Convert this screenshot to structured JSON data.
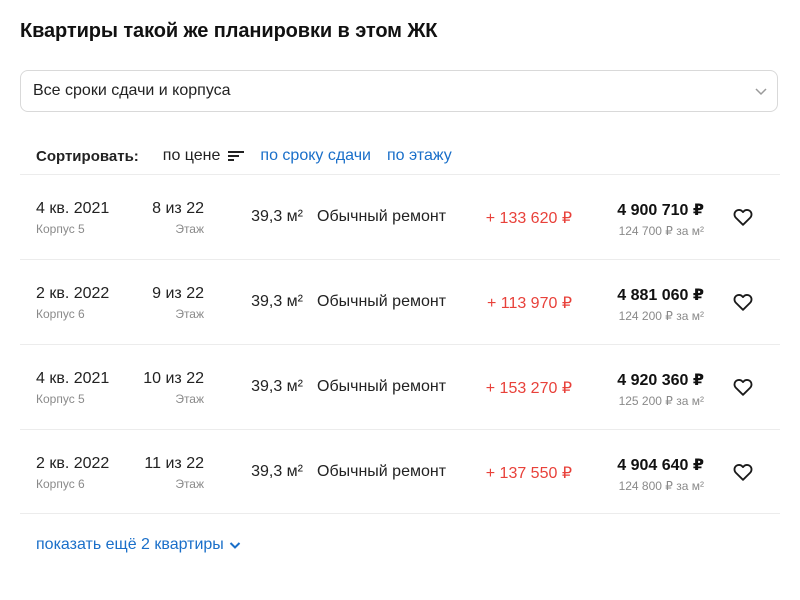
{
  "title": "Квартиры такой же планировки в этом ЖК",
  "filter": {
    "value": "Все сроки сдачи и корпуса"
  },
  "sort": {
    "label": "Сортировать:",
    "options": [
      {
        "label": "по цене",
        "active": true
      },
      {
        "label": "по сроку сдачи",
        "active": false
      },
      {
        "label": "по этажу",
        "active": false
      }
    ]
  },
  "rows": [
    {
      "date": "4 кв. 2021",
      "building": "Корпус 5",
      "floor": "8 из 22",
      "floor_label": "Этаж",
      "area": "39,3 м²",
      "repair": "Обычный ремонт",
      "diff": "+ 133 620 ₽",
      "price": "4 900 710 ₽",
      "price_per_m2": "124 700 ₽ за м²"
    },
    {
      "date": "2 кв. 2022",
      "building": "Корпус 6",
      "floor": "9 из 22",
      "floor_label": "Этаж",
      "area": "39,3 м²",
      "repair": "Обычный ремонт",
      "diff": "+ 113 970 ₽",
      "price": "4 881 060 ₽",
      "price_per_m2": "124 200 ₽ за м²"
    },
    {
      "date": "4 кв. 2021",
      "building": "Корпус 5",
      "floor": "10 из 22",
      "floor_label": "Этаж",
      "area": "39,3 м²",
      "repair": "Обычный ремонт",
      "diff": "+ 153 270 ₽",
      "price": "4 920 360 ₽",
      "price_per_m2": "125 200 ₽ за м²"
    },
    {
      "date": "2 кв. 2022",
      "building": "Корпус 6",
      "floor": "11 из 22",
      "floor_label": "Этаж",
      "area": "39,3 м²",
      "repair": "Обычный ремонт",
      "diff": "+ 137 550 ₽",
      "price": "4 904 640 ₽",
      "price_per_m2": "124 800 ₽ за м²"
    }
  ],
  "show_more": "показать ещё 2 квартиры",
  "colors": {
    "link": "#1a6fc9",
    "diff": "#e8413a"
  },
  "icons": {
    "select": "chevron-down-icon",
    "sort": "sort-lines-icon",
    "favorite": "heart-outline-icon"
  }
}
